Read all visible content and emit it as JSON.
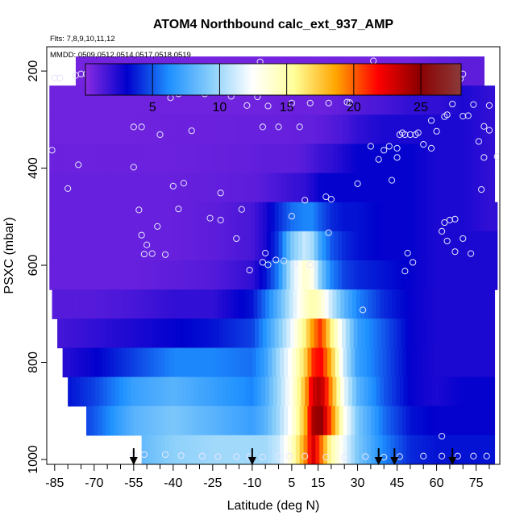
{
  "chart_data": {
    "type": "heatmap",
    "title": "ATOM4 Northbound calc_ext_937_AMP",
    "flights_label": "Flts: 7,8,9,10,11,12",
    "dates_label": "MMDD: 0509,0512,0514,0517,0518,0519",
    "xlabel": "Latitude (deg N)",
    "ylabel": "PSXC (mbar)",
    "xlim": [
      -88,
      84
    ],
    "ylim": [
      1010,
      150
    ],
    "x_ticks": [
      -85,
      -70,
      -55,
      -40,
      -25,
      -10,
      5,
      15,
      30,
      45,
      60,
      75
    ],
    "x_minor_step": 5,
    "y_ticks": [
      200,
      400,
      600,
      800,
      1000
    ],
    "colorbar": {
      "min": 0,
      "max": 28,
      "ticks": [
        5,
        10,
        15,
        20,
        25
      ],
      "colors": [
        "#8a2be2",
        "#0000cd",
        "#1e90ff",
        "#87cefa",
        "#ffffff",
        "#ffff99",
        "#ffa500",
        "#ff0000",
        "#8b0000",
        "#8b3a3a"
      ]
    },
    "pressure_levels": [
      200,
      260,
      320,
      380,
      440,
      500,
      560,
      620,
      680,
      740,
      800,
      860,
      920,
      980
    ],
    "layer_extent": [
      [
        -77,
        78
      ],
      [
        -87,
        82
      ],
      [
        -87,
        82
      ],
      [
        -87,
        82
      ],
      [
        -87,
        82
      ],
      [
        -87,
        83
      ],
      [
        -87,
        83
      ],
      [
        -87,
        83
      ],
      [
        -86,
        82
      ],
      [
        -84,
        82
      ],
      [
        -82,
        82
      ],
      [
        -80,
        82
      ],
      [
        -73,
        82
      ],
      [
        -52,
        82
      ]
    ],
    "amp_field": {
      "lat": [
        -85,
        -70,
        -55,
        -40,
        -25,
        -10,
        -5,
        0,
        5,
        10,
        13,
        16,
        20,
        25,
        30,
        40,
        50,
        60,
        70,
        80
      ],
      "values": [
        [
          0.5,
          0.5,
          0.5,
          0.5,
          0.5,
          0.5,
          0.5,
          0.5,
          0.5,
          0.5,
          0.5,
          0.5,
          0.5,
          0.5,
          0.5,
          0.5,
          0.5,
          0.8,
          1,
          1
        ],
        [
          0.6,
          0.6,
          0.6,
          0.6,
          0.6,
          0.6,
          0.6,
          0.7,
          0.7,
          0.7,
          0.7,
          0.7,
          0.8,
          1,
          1.2,
          1.5,
          2,
          2,
          2.5,
          2
        ],
        [
          0.6,
          0.6,
          0.6,
          0.7,
          0.7,
          0.8,
          0.8,
          0.8,
          0.8,
          0.9,
          0.9,
          1,
          1.2,
          1.5,
          2,
          2.5,
          2.5,
          2.5,
          2.5,
          2
        ],
        [
          0.7,
          0.7,
          0.7,
          0.7,
          0.8,
          0.9,
          1,
          1,
          1,
          1.2,
          1.5,
          1.8,
          2,
          2.5,
          3,
          3,
          3,
          2.5,
          2.5,
          2
        ],
        [
          0.8,
          0.8,
          0.8,
          0.8,
          0.9,
          1,
          1.2,
          1.5,
          1.8,
          2,
          2.5,
          3,
          3,
          3,
          3,
          3,
          3,
          2.5,
          2.5,
          2
        ],
        [
          0.8,
          0.8,
          0.8,
          0.8,
          1,
          1.5,
          2.5,
          4,
          5.5,
          6,
          6,
          5,
          4,
          3.5,
          3.5,
          3,
          3,
          2.5,
          2.5,
          2
        ],
        [
          0.8,
          0.8,
          0.8,
          0.8,
          1,
          1.5,
          2.5,
          4.5,
          9,
          11,
          10,
          7,
          5,
          4,
          3.5,
          3,
          3,
          2.5,
          2.5,
          2.5
        ],
        [
          0.8,
          0.8,
          0.8,
          1,
          1.2,
          2,
          3.5,
          6,
          11,
          14,
          13,
          9,
          6,
          4.5,
          4,
          3.5,
          3,
          2.5,
          2.5,
          2.5
        ],
        [
          1.2,
          1.2,
          1.5,
          2,
          2,
          3.5,
          5.5,
          8,
          11,
          14,
          15,
          14,
          11,
          8,
          6,
          4,
          3,
          2.5,
          2.5,
          2.5
        ],
        [
          1.5,
          2,
          2.5,
          3,
          3.5,
          4.5,
          6.5,
          9,
          12,
          16,
          19,
          21,
          16,
          11,
          7,
          5,
          3,
          2.5,
          2.5,
          2.5
        ],
        [
          2,
          3,
          4.5,
          6,
          6,
          5.5,
          7,
          10,
          13,
          17,
          21,
          22,
          18,
          11,
          7,
          5,
          3,
          2.5,
          2.5,
          2.5
        ],
        [
          3,
          4.5,
          7,
          8,
          7,
          6,
          7.5,
          10,
          13,
          18,
          23,
          24,
          19,
          12,
          8,
          5,
          3,
          2.5,
          3,
          3
        ],
        [
          3,
          5,
          8,
          9,
          8,
          7,
          8,
          10,
          13,
          18,
          24,
          25,
          20,
          13,
          9,
          5.5,
          3.5,
          3,
          3,
          3
        ],
        [
          3,
          5,
          8,
          9.5,
          10,
          10,
          10,
          11,
          14,
          19,
          23,
          20,
          15,
          12,
          9,
          6,
          4,
          3.5,
          3.5,
          3.5
        ]
      ]
    },
    "cloud_points": [
      [
        -69,
        192
      ],
      [
        -66,
        192
      ],
      [
        -63,
        192
      ],
      [
        -75,
        206
      ],
      [
        -73,
        206
      ],
      [
        -77,
        209
      ],
      [
        -85,
        214
      ],
      [
        -83,
        214
      ],
      [
        -62,
        210
      ],
      [
        -34,
        214
      ],
      [
        -7,
        181
      ],
      [
        -19,
        209
      ],
      [
        -86,
        363
      ],
      [
        -76,
        393
      ],
      [
        -80,
        442
      ],
      [
        -55,
        398
      ],
      [
        -53,
        486
      ],
      [
        -52,
        538
      ],
      [
        -50,
        558
      ],
      [
        -48,
        576
      ],
      [
        -51,
        577
      ],
      [
        -43,
        578
      ],
      [
        -46,
        520
      ],
      [
        -41,
        255
      ],
      [
        -45,
        240
      ],
      [
        -38,
        247
      ],
      [
        -55,
        315
      ],
      [
        -52,
        315
      ],
      [
        -45,
        331
      ],
      [
        -28,
        247
      ],
      [
        -18,
        252
      ],
      [
        -33,
        323
      ],
      [
        -38,
        484
      ],
      [
        -36,
        431
      ],
      [
        -26,
        503
      ],
      [
        -22,
        507
      ],
      [
        -16,
        545
      ],
      [
        -14,
        485
      ],
      [
        -12,
        271
      ],
      [
        -8,
        253
      ],
      [
        -4,
        272
      ],
      [
        -6,
        315
      ],
      [
        0,
        315
      ],
      [
        8,
        315
      ],
      [
        -22,
        451
      ],
      [
        -40,
        437
      ],
      [
        -5,
        575
      ],
      [
        -1,
        589
      ],
      [
        -6,
        594
      ],
      [
        -4,
        599
      ],
      [
        2,
        591
      ],
      [
        -11,
        610
      ],
      [
        5,
        499
      ],
      [
        10,
        466
      ],
      [
        18,
        459
      ],
      [
        20,
        464
      ],
      [
        19,
        533
      ],
      [
        6,
        596
      ],
      [
        12,
        599
      ],
      [
        5,
        266
      ],
      [
        12,
        266
      ],
      [
        19,
        266
      ],
      [
        26,
        264
      ],
      [
        27,
        265
      ],
      [
        30,
        432
      ],
      [
        32,
        692
      ],
      [
        35,
        355
      ],
      [
        36,
        179
      ],
      [
        38,
        382
      ],
      [
        40,
        363
      ],
      [
        42,
        355
      ],
      [
        43,
        425
      ],
      [
        45,
        378
      ],
      [
        45,
        359
      ],
      [
        46,
        331
      ],
      [
        47,
        327
      ],
      [
        48,
        331
      ],
      [
        50,
        331
      ],
      [
        52,
        331
      ],
      [
        53,
        327
      ],
      [
        48,
        612
      ],
      [
        49,
        575
      ],
      [
        51,
        594
      ],
      [
        55,
        351
      ],
      [
        58,
        302
      ],
      [
        58,
        359
      ],
      [
        60,
        324
      ],
      [
        63,
        294
      ],
      [
        64,
        290
      ],
      [
        66,
        268
      ],
      [
        62,
        530
      ],
      [
        63,
        512
      ],
      [
        64,
        550
      ],
      [
        65,
        507
      ],
      [
        67,
        505
      ],
      [
        68,
        209
      ],
      [
        69,
        216
      ],
      [
        70,
        206
      ],
      [
        70,
        293
      ],
      [
        72,
        292
      ],
      [
        74,
        269
      ],
      [
        76,
        345
      ],
      [
        78,
        314
      ],
      [
        77,
        444
      ],
      [
        78,
        378
      ],
      [
        80,
        322
      ],
      [
        80,
        271
      ],
      [
        83,
        376
      ],
      [
        70,
        545
      ],
      [
        67,
        572
      ],
      [
        73,
        576
      ],
      [
        62,
        952
      ],
      [
        -55,
        990
      ],
      [
        -51,
        990
      ],
      [
        -43,
        990
      ],
      [
        -37,
        992
      ],
      [
        -29,
        993
      ],
      [
        -23,
        994
      ],
      [
        -16,
        994
      ],
      [
        -11,
        994
      ],
      [
        -6,
        995
      ],
      [
        0,
        993
      ],
      [
        4,
        993
      ],
      [
        10,
        993
      ],
      [
        18,
        995
      ],
      [
        25,
        995
      ],
      [
        33,
        994
      ],
      [
        40,
        995
      ],
      [
        46,
        994
      ],
      [
        55,
        993
      ],
      [
        62,
        993
      ],
      [
        68,
        993
      ],
      [
        74,
        993
      ],
      [
        79,
        993
      ]
    ],
    "arrow_latitudes": [
      -55,
      -10,
      38,
      44,
      66
    ],
    "grid": false
  }
}
